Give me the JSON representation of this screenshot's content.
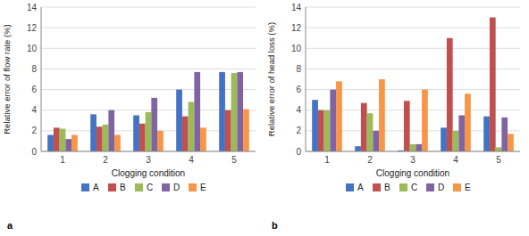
{
  "chart_data": [
    {
      "type": "bar",
      "xlabel": "Clogging condition",
      "ylabel": "Relative error of flow rate (%)",
      "categories": [
        1,
        2,
        3,
        4,
        5
      ],
      "series": [
        {
          "name": "A",
          "color": "#4472C4",
          "values": [
            1.6,
            3.6,
            3.5,
            6.0,
            7.7
          ]
        },
        {
          "name": "B",
          "color": "#C0504D",
          "values": [
            2.3,
            2.4,
            2.7,
            3.4,
            4.0
          ]
        },
        {
          "name": "C",
          "color": "#9BBB59",
          "values": [
            2.2,
            2.6,
            3.8,
            4.8,
            7.6
          ]
        },
        {
          "name": "D",
          "color": "#8064A2",
          "values": [
            1.2,
            4.0,
            5.2,
            7.7,
            7.7
          ]
        },
        {
          "name": "E",
          "color": "#F79646",
          "values": [
            1.6,
            1.6,
            2.0,
            2.3,
            4.1
          ]
        }
      ],
      "ylim": [
        0,
        14
      ],
      "yticks": [
        0,
        2,
        4,
        6,
        8,
        10,
        12,
        14
      ],
      "grid": true,
      "legend": "bottom",
      "annotations": [
        "a"
      ]
    },
    {
      "type": "bar",
      "xlabel": "Clogging condition",
      "ylabel": "Relative error of head loss (%)",
      "categories": [
        1,
        2,
        3,
        4,
        5
      ],
      "series": [
        {
          "name": "A",
          "color": "#4472C4",
          "values": [
            5.0,
            0.5,
            0.1,
            2.3,
            3.4
          ]
        },
        {
          "name": "B",
          "color": "#C0504D",
          "values": [
            4.0,
            4.7,
            4.9,
            11.0,
            13.0
          ]
        },
        {
          "name": "C",
          "color": "#9BBB59",
          "values": [
            4.0,
            3.7,
            0.7,
            2.0,
            0.4
          ]
        },
        {
          "name": "D",
          "color": "#8064A2",
          "values": [
            6.0,
            2.0,
            0.7,
            3.5,
            3.3
          ]
        },
        {
          "name": "E",
          "color": "#F79646",
          "values": [
            6.8,
            7.0,
            6.0,
            5.6,
            1.7
          ]
        }
      ],
      "ylim": [
        0,
        14
      ],
      "yticks": [
        0,
        2,
        4,
        6,
        8,
        10,
        12,
        14
      ],
      "grid": true,
      "legend": "bottom",
      "annotations": [
        "b"
      ]
    }
  ]
}
